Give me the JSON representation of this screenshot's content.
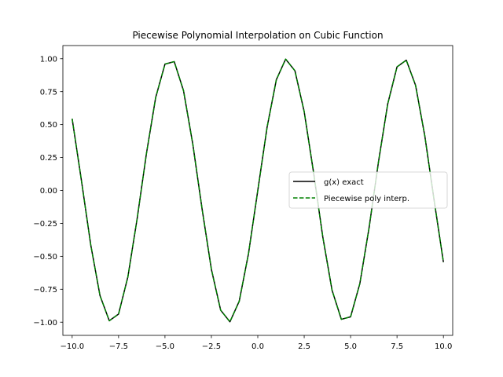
{
  "chart_data": {
    "type": "line",
    "title": "Piecewise Polynomial Interpolation on Cubic Function",
    "xlabel": "",
    "ylabel": "",
    "xlim": [
      -10.5,
      10.5
    ],
    "ylim": [
      -1.1,
      1.1
    ],
    "xticks": [
      -10.0,
      -7.5,
      -5.0,
      -2.5,
      0.0,
      2.5,
      5.0,
      7.5,
      10.0
    ],
    "xtick_labels": [
      "−10.0",
      "−7.5",
      "−5.0",
      "−2.5",
      "0.0",
      "2.5",
      "5.0",
      "7.5",
      "10.0"
    ],
    "yticks": [
      -1.0,
      -0.75,
      -0.5,
      -0.25,
      0.0,
      0.25,
      0.5,
      0.75,
      1.0
    ],
    "ytick_labels": [
      "−1.00",
      "−0.75",
      "−0.50",
      "−0.25",
      "0.00",
      "0.25",
      "0.50",
      "0.75",
      "1.00"
    ],
    "grid": false,
    "legend_position": "center-right",
    "x": [
      -10.0,
      -9.5,
      -9.0,
      -8.5,
      -8.0,
      -7.5,
      -7.0,
      -6.5,
      -6.0,
      -5.5,
      -5.0,
      -4.5,
      -4.0,
      -3.5,
      -3.0,
      -2.5,
      -2.0,
      -1.5,
      -1.0,
      -0.5,
      0.0,
      0.5,
      1.0,
      1.5,
      2.0,
      2.5,
      3.0,
      3.5,
      4.0,
      4.5,
      5.0,
      5.5,
      6.0,
      6.5,
      7.0,
      7.5,
      8.0,
      8.5,
      9.0,
      9.5,
      10.0
    ],
    "series": [
      {
        "name": "g(x) exact",
        "color": "#000000",
        "style": "solid",
        "values": [
          0.544,
          0.075,
          -0.412,
          -0.798,
          -0.989,
          -0.938,
          -0.657,
          -0.215,
          0.279,
          0.706,
          0.959,
          0.978,
          0.757,
          0.351,
          -0.141,
          -0.598,
          -0.909,
          -0.997,
          -0.841,
          -0.479,
          0.0,
          0.479,
          0.841,
          0.997,
          0.909,
          0.598,
          0.141,
          -0.351,
          -0.757,
          -0.978,
          -0.959,
          -0.706,
          -0.279,
          0.215,
          0.657,
          0.938,
          0.989,
          0.798,
          0.412,
          -0.075,
          -0.544
        ]
      },
      {
        "name": "Piecewise poly interp.",
        "color": "#008000",
        "style": "dashed",
        "values": [
          0.544,
          0.075,
          -0.412,
          -0.798,
          -0.989,
          -0.938,
          -0.657,
          -0.215,
          0.279,
          0.706,
          0.959,
          0.978,
          0.757,
          0.351,
          -0.141,
          -0.598,
          -0.909,
          -0.997,
          -0.841,
          -0.479,
          0.0,
          0.479,
          0.841,
          0.997,
          0.909,
          0.598,
          0.141,
          -0.351,
          -0.757,
          -0.978,
          -0.959,
          -0.706,
          -0.279,
          0.215,
          0.657,
          0.938,
          0.989,
          0.798,
          0.412,
          -0.075,
          -0.544
        ]
      }
    ]
  }
}
